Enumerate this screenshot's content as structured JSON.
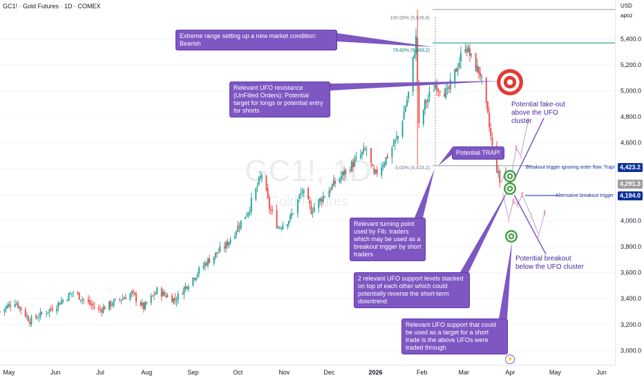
{
  "header": {
    "symbol_line": "GC1! · Gold Futures · 1D · COMEX",
    "currency": "USD",
    "scale_label": "apoz"
  },
  "watermark": {
    "ticker": "GC1!, 1D",
    "name": "Gold Futures"
  },
  "price_tags": {
    "breakout": "4,423.2",
    "current": "4,291.3",
    "alternative": "4,194.0"
  },
  "fib": {
    "top_label": "100.00% (5,626.8)",
    "mid_label": "78.60% (5,369.2)",
    "bottom_label": "0.00% (4,423.2)"
  },
  "annotations": {
    "extreme_range": "Extreme range setting up a new market condition: Bearish",
    "ufo_resistance": "Relevant UFO resistance (UnFilled Orders): Potential target for longs or potential entry for shorts",
    "trap": "Potential TRAP!",
    "turning_point": "Relevant turning point used by Fib. traders which may be used as a breakout trigger by short traders",
    "two_ufo_support": "2 relevant UFO support levels stacked on top of each other which could potentially reverse the short-term downtrend",
    "ufo_support_target": "Relevant UFO support that could be used as a target for a short trade is the above UFOs were traded through",
    "fakeout": "Potential fake-out above the UFO cluster",
    "breakdown": "Potential breakout below the UFO cluster",
    "breakout_trigger": "Breakout trigger ignoring order flow: Trap!",
    "alt_trigger": "Alternative breakout trigger"
  },
  "colors": {
    "up": "#26a69a",
    "down": "#ef5350",
    "callout": "#7e57c2",
    "fib": "#9598a1",
    "fib_mid": "#00897b",
    "tag_blue": "#0c3299",
    "tag_grey": "#787b86",
    "target_red": "#e53935",
    "target_green": "#43a047"
  },
  "chart_data": {
    "type": "candlestick",
    "title": "GC1! · Gold Futures · 1D · COMEX",
    "x_tick_labels": [
      "May",
      "Jun",
      "Jul",
      "Aug",
      "Sep",
      "Oct",
      "Nov",
      "Dec",
      "2026",
      "Feb",
      "Mar",
      "Apr",
      "May",
      "Jun"
    ],
    "y_ticks": [
      3000,
      3200,
      3400,
      3600,
      3800,
      4000,
      4200,
      4400,
      4600,
      4800,
      5000,
      5200,
      5400
    ],
    "ylim": [
      2890,
      5700
    ],
    "close_path": [
      [
        "2025-04-25",
        3300
      ],
      [
        "2025-05-05",
        3380
      ],
      [
        "2025-05-15",
        3230
      ],
      [
        "2025-05-29",
        3320
      ],
      [
        "2025-06-13",
        3450
      ],
      [
        "2025-06-30",
        3310
      ],
      [
        "2025-07-22",
        3440
      ],
      [
        "2025-07-30",
        3330
      ],
      [
        "2025-08-08",
        3460
      ],
      [
        "2025-08-20",
        3390
      ],
      [
        "2025-08-29",
        3520
      ],
      [
        "2025-09-10",
        3680
      ],
      [
        "2025-09-23",
        3810
      ],
      [
        "2025-10-08",
        4080
      ],
      [
        "2025-10-17",
        4360
      ],
      [
        "2025-10-22",
        4100
      ],
      [
        "2025-10-28",
        3950
      ],
      [
        "2025-11-05",
        4020
      ],
      [
        "2025-11-13",
        4230
      ],
      [
        "2025-11-19",
        4080
      ],
      [
        "2025-12-01",
        4240
      ],
      [
        "2025-12-12",
        4380
      ],
      [
        "2025-12-26",
        4550
      ],
      [
        "2025-12-31",
        4340
      ],
      [
        "2026-01-08",
        4480
      ],
      [
        "2026-01-16",
        4650
      ],
      [
        "2026-01-23",
        4980
      ],
      [
        "2026-01-28",
        5400
      ],
      [
        "2026-01-30",
        4720
      ],
      [
        "2026-02-03",
        4900
      ],
      [
        "2026-02-10",
        5050
      ],
      [
        "2026-02-18",
        4980
      ],
      [
        "2026-02-25",
        5200
      ],
      [
        "2026-03-02",
        5360
      ],
      [
        "2026-03-07",
        5220
      ],
      [
        "2026-03-12",
        5130
      ],
      [
        "2026-03-17",
        4800
      ],
      [
        "2026-03-20",
        4560
      ],
      [
        "2026-03-25",
        4300
      ]
    ],
    "fib_levels": [
      {
        "ratio": "100.00%",
        "price": 5626.8
      },
      {
        "ratio": "78.60%",
        "price": 5369.2
      },
      {
        "ratio": "0.00%",
        "price": 4423.2
      }
    ],
    "horizontal_levels": [
      {
        "price": 5626.8
      },
      {
        "price": 5369.2
      },
      {
        "price": 4423.2
      },
      {
        "price": 4194.0
      }
    ],
    "ufo_targets": [
      {
        "kind": "resistance",
        "price": 5100
      },
      {
        "kind": "support",
        "price": 4330
      },
      {
        "kind": "support",
        "price": 4230
      },
      {
        "kind": "support",
        "price": 3870
      }
    ],
    "last_price": 4291.3,
    "scenario_up": [
      [
        "2026-03-26",
        4290
      ],
      [
        "2026-03-29",
        4390
      ],
      [
        "2026-04-01",
        4300
      ],
      [
        "2026-04-05",
        4560
      ],
      [
        "2026-04-08",
        4500
      ],
      [
        "2026-04-13",
        4770
      ]
    ],
    "scenario_down": [
      [
        "2026-03-27",
        4210
      ],
      [
        "2026-03-31",
        4010
      ],
      [
        "2026-04-03",
        4150
      ],
      [
        "2026-04-06",
        4120
      ],
      [
        "2026-04-09",
        4200
      ],
      [
        "2026-04-15",
        4040
      ],
      [
        "2026-04-20",
        3890
      ],
      [
        "2026-04-24",
        4060
      ]
    ]
  }
}
